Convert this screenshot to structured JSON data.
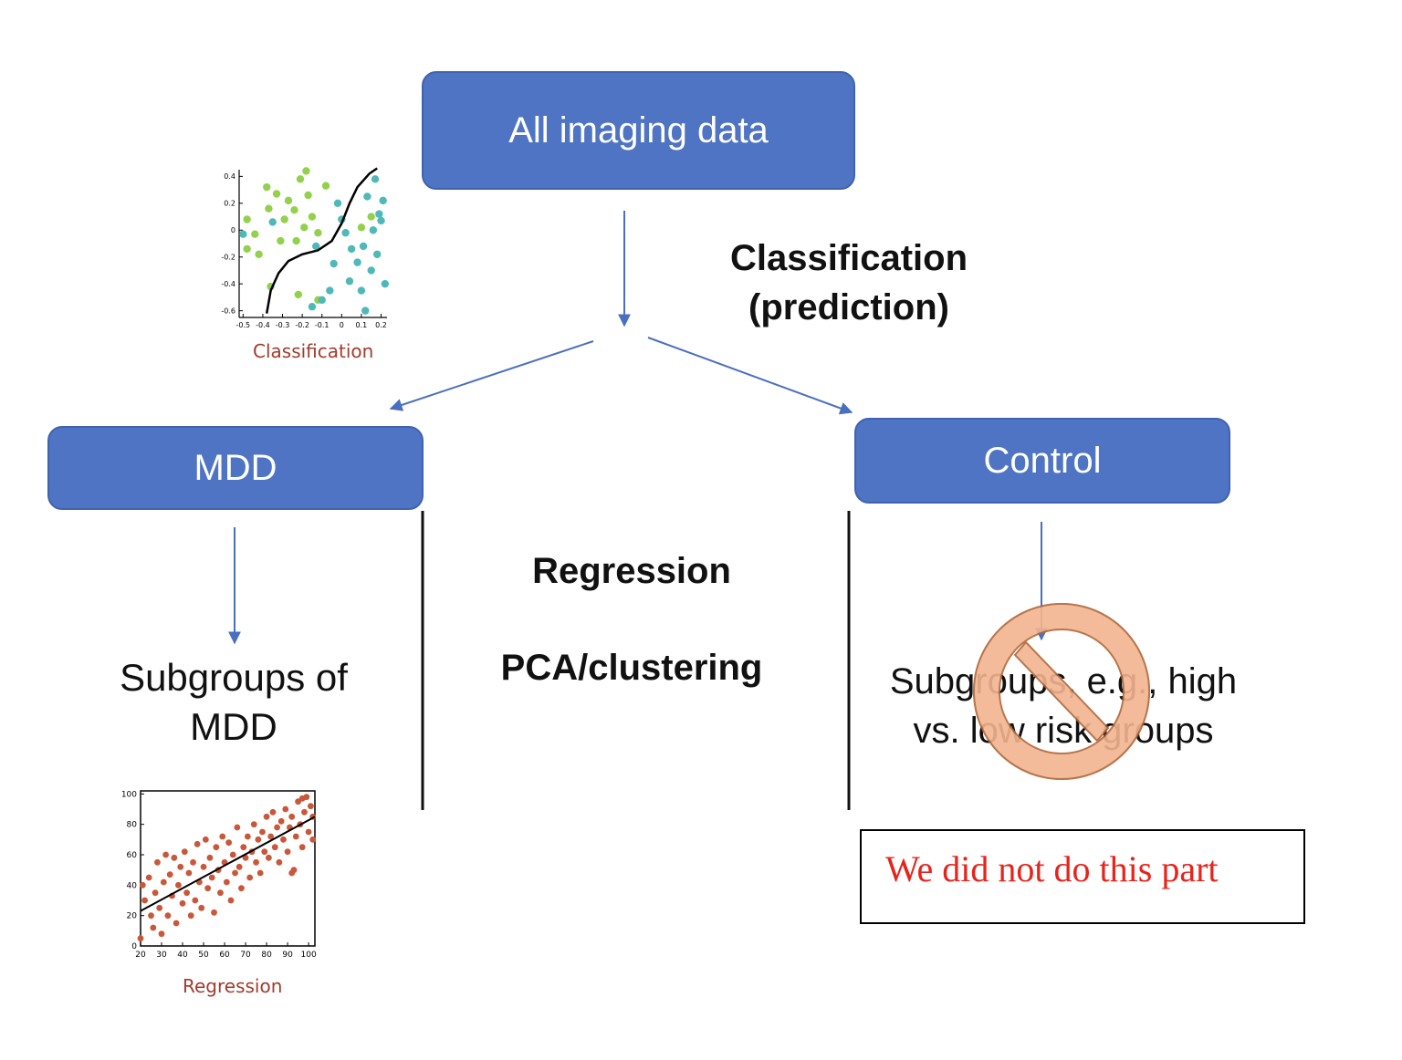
{
  "nodes": {
    "all_imaging": "All imaging data",
    "mdd": "MDD",
    "control": "Control",
    "subgroups_mdd_line1": "Subgroups of",
    "subgroups_mdd_line2": "MDD",
    "subgroups_ctrl_line1": "Subgroups, e.g., high",
    "subgroups_ctrl_line2": "vs. low risk groups"
  },
  "labels": {
    "classification_line1": "Classification",
    "classification_line2": "(prediction)",
    "regression": "Regression",
    "pca": "PCA/clustering"
  },
  "note": "We did not do this part",
  "colors": {
    "box": "#4f74c4",
    "arrow": "#4a6fc0",
    "class_a": "#93d14c",
    "class_b": "#4fb8b8",
    "reg_points": "#c9573a",
    "no_sign_fill": "#f2b48f",
    "no_sign_stroke": "#b0683a",
    "note_text": "#e8231b"
  },
  "icons": {
    "prohibited": "no-sign-icon"
  },
  "chart_data": [
    {
      "type": "scatter",
      "caption": "Classification",
      "x_ticks": [
        "-0.5",
        "-0.4",
        "-0.3",
        "-0.2",
        "-0.1",
        "0",
        "0.1",
        "0.2"
      ],
      "y_ticks": [
        "0.4",
        "0.2",
        "0",
        "-0.2",
        "-0.4",
        "-0.6"
      ],
      "xlim": [
        -0.52,
        0.23
      ],
      "ylim": [
        -0.65,
        0.45
      ],
      "series": [
        {
          "values": [
            [
              -0.48,
              0.08
            ],
            [
              -0.48,
              -0.14
            ],
            [
              -0.38,
              0.32
            ],
            [
              -0.44,
              -0.03
            ],
            [
              -0.37,
              0.16
            ],
            [
              -0.33,
              0.27
            ],
            [
              -0.42,
              -0.18
            ],
            [
              -0.31,
              -0.08
            ],
            [
              -0.29,
              0.08
            ],
            [
              -0.27,
              0.22
            ],
            [
              -0.24,
              0.15
            ],
            [
              -0.21,
              0.38
            ],
            [
              -0.19,
              0.02
            ],
            [
              -0.23,
              -0.08
            ],
            [
              -0.17,
              0.26
            ],
            [
              -0.15,
              0.1
            ],
            [
              -0.12,
              -0.02
            ],
            [
              -0.18,
              0.44
            ],
            [
              -0.08,
              0.33
            ],
            [
              -0.22,
              -0.48
            ],
            [
              -0.12,
              -0.52
            ],
            [
              0.1,
              0.02
            ],
            [
              0.15,
              0.1
            ],
            [
              -0.36,
              -0.42
            ]
          ]
        },
        {
          "values": [
            [
              -0.5,
              -0.03
            ],
            [
              -0.35,
              0.06
            ],
            [
              -0.13,
              -0.12
            ],
            [
              -0.1,
              -0.52
            ],
            [
              -0.04,
              -0.25
            ],
            [
              -0.02,
              0.2
            ],
            [
              0.02,
              -0.02
            ],
            [
              0.04,
              -0.38
            ],
            [
              0.05,
              -0.14
            ],
            [
              0.08,
              -0.24
            ],
            [
              0.1,
              -0.45
            ],
            [
              0.11,
              -0.12
            ],
            [
              0.13,
              0.25
            ],
            [
              0.15,
              -0.3
            ],
            [
              0.16,
              0.0
            ],
            [
              0.17,
              0.38
            ],
            [
              0.18,
              -0.18
            ],
            [
              0.2,
              0.07
            ],
            [
              0.21,
              0.22
            ],
            [
              0.22,
              -0.4
            ],
            [
              0.0,
              0.08
            ],
            [
              0.19,
              0.12
            ],
            [
              -0.06,
              -0.45
            ],
            [
              0.12,
              -0.6
            ],
            [
              -0.15,
              -0.57
            ]
          ]
        }
      ],
      "boundary": [
        [
          -0.38,
          -0.62
        ],
        [
          -0.36,
          -0.45
        ],
        [
          -0.32,
          -0.32
        ],
        [
          -0.27,
          -0.23
        ],
        [
          -0.2,
          -0.18
        ],
        [
          -0.12,
          -0.15
        ],
        [
          -0.05,
          -0.08
        ],
        [
          0.0,
          0.05
        ],
        [
          0.04,
          0.2
        ],
        [
          0.08,
          0.32
        ],
        [
          0.14,
          0.42
        ],
        [
          0.18,
          0.46
        ]
      ]
    },
    {
      "type": "scatter",
      "caption": "Regression",
      "x_ticks": [
        "20",
        "30",
        "40",
        "50",
        "60",
        "70",
        "80",
        "90",
        "100"
      ],
      "y_ticks": [
        "100",
        "80",
        "60",
        "40",
        "20",
        "0"
      ],
      "xlim": [
        20,
        103
      ],
      "ylim": [
        0,
        102
      ],
      "trend": [
        [
          20,
          23
        ],
        [
          103,
          85
        ]
      ],
      "series": [
        {
          "values": [
            [
              20,
              5
            ],
            [
              21,
              40
            ],
            [
              22,
              30
            ],
            [
              24,
              45
            ],
            [
              25,
              20
            ],
            [
              26,
              12
            ],
            [
              27,
              35
            ],
            [
              28,
              55
            ],
            [
              29,
              25
            ],
            [
              30,
              8
            ],
            [
              31,
              42
            ],
            [
              32,
              60
            ],
            [
              33,
              20
            ],
            [
              34,
              47
            ],
            [
              35,
              33
            ],
            [
              36,
              58
            ],
            [
              37,
              15
            ],
            [
              38,
              40
            ],
            [
              39,
              52
            ],
            [
              40,
              28
            ],
            [
              41,
              62
            ],
            [
              42,
              35
            ],
            [
              43,
              48
            ],
            [
              44,
              20
            ],
            [
              45,
              55
            ],
            [
              46,
              30
            ],
            [
              47,
              67
            ],
            [
              48,
              42
            ],
            [
              49,
              25
            ],
            [
              50,
              52
            ],
            [
              51,
              70
            ],
            [
              52,
              38
            ],
            [
              53,
              58
            ],
            [
              54,
              45
            ],
            [
              55,
              22
            ],
            [
              56,
              65
            ],
            [
              57,
              50
            ],
            [
              58,
              35
            ],
            [
              59,
              72
            ],
            [
              60,
              55
            ],
            [
              61,
              42
            ],
            [
              62,
              68
            ],
            [
              63,
              30
            ],
            [
              64,
              60
            ],
            [
              65,
              48
            ],
            [
              66,
              78
            ],
            [
              67,
              52
            ],
            [
              68,
              38
            ],
            [
              69,
              65
            ],
            [
              70,
              58
            ],
            [
              71,
              72
            ],
            [
              72,
              45
            ],
            [
              73,
              62
            ],
            [
              74,
              80
            ],
            [
              75,
              55
            ],
            [
              76,
              70
            ],
            [
              77,
              48
            ],
            [
              78,
              75
            ],
            [
              79,
              62
            ],
            [
              80,
              85
            ],
            [
              81,
              58
            ],
            [
              82,
              72
            ],
            [
              83,
              88
            ],
            [
              84,
              65
            ],
            [
              85,
              78
            ],
            [
              86,
              55
            ],
            [
              87,
              82
            ],
            [
              88,
              70
            ],
            [
              89,
              90
            ],
            [
              90,
              62
            ],
            [
              91,
              78
            ],
            [
              92,
              85
            ],
            [
              93,
              50
            ],
            [
              94,
              72
            ],
            [
              95,
              95
            ],
            [
              96,
              80
            ],
            [
              97,
              65
            ],
            [
              98,
              88
            ],
            [
              99,
              98
            ],
            [
              100,
              75
            ],
            [
              101,
              92
            ],
            [
              102,
              70
            ],
            [
              102,
              85
            ],
            [
              97,
              97
            ],
            [
              92,
              48
            ]
          ]
        }
      ]
    }
  ]
}
